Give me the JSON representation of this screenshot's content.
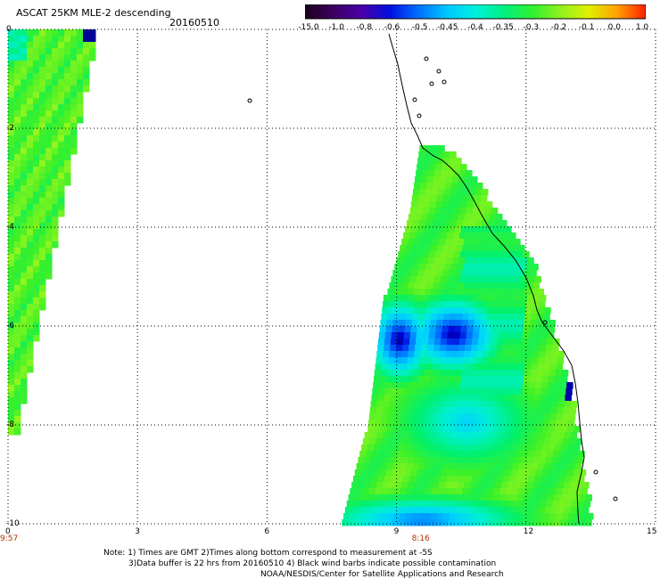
{
  "header": {
    "title": "ASCAT 25KM MLE-2 descending",
    "date": "20160510"
  },
  "colorbar": {
    "labels": [
      "-15.0",
      "-1.0",
      "-0.8",
      "-0.6",
      "-0.5",
      "-0.45",
      "-0.4",
      "-0.35",
      "-0.3",
      "-0.2",
      "-0.1",
      "0.0",
      "1.0"
    ],
    "colors": [
      "#1a001a",
      "#3c0060",
      "#4a00a8",
      "#0010e0",
      "#0070ff",
      "#00c8ff",
      "#00f0e0",
      "#00f080",
      "#30f030",
      "#90f020",
      "#e0f000",
      "#ffa000",
      "#ff2000"
    ]
  },
  "axes": {
    "x_ticks": [
      "0",
      "3",
      "6",
      "9",
      "12",
      "15"
    ],
    "y_ticks": [
      "0",
      "-2",
      "-4",
      "-6",
      "-8",
      "-10"
    ],
    "xlim": [
      0,
      15
    ],
    "ylim": [
      -10,
      0
    ],
    "grid": true
  },
  "times": [
    {
      "x": 0,
      "label": "9:57"
    },
    {
      "x": 9.6,
      "label": "8:16"
    }
  ],
  "notes": [
    "Note: 1) Times are GMT 2)Times along bottom correspond to measurement at -5S",
    "3)Data buffer is 22 hrs from 20160510 4) Black wind barbs indicate possible contamination",
    "NOAA/NESDIS/Center for Satellite Applications and Research"
  ]
}
